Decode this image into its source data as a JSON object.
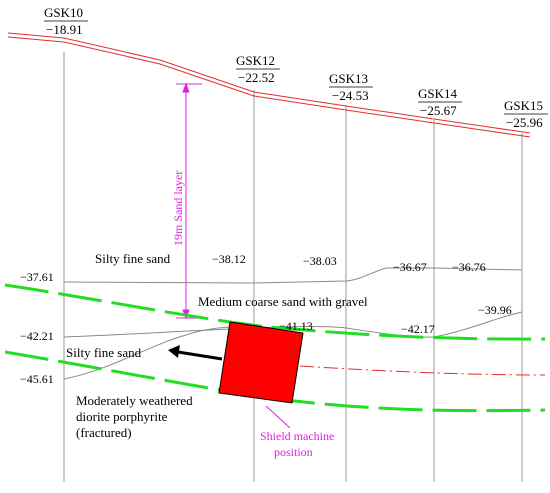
{
  "boreholes": [
    {
      "id": "GSK10",
      "elevation": "−18.91"
    },
    {
      "id": "GSK12",
      "elevation": "−22.52"
    },
    {
      "id": "GSK13",
      "elevation": "−24.53"
    },
    {
      "id": "GSK14",
      "elevation": "−25.67"
    },
    {
      "id": "GSK15",
      "elevation": "−25.96"
    }
  ],
  "depths": {
    "d1": "−37.61",
    "d2": "−38.12",
    "d3": "−38.03",
    "d4": "−36.67",
    "d5": "−36.76",
    "d6": "−42.21",
    "d7": "−41.13",
    "d8": "−42.17",
    "d9": "−39.96",
    "d10": "−45.61"
  },
  "layers": {
    "silty_fine_sand_upper": "Silty fine sand",
    "medium_coarse_sand": "Medium coarse sand with gravel",
    "silty_fine_sand_lower": "Silty fine sand",
    "diorite_line1": "Moderately weathered",
    "diorite_line2": "diorite porphyrite",
    "diorite_line3": "(fractured)"
  },
  "annotations": {
    "sand_layer": "19m Sand layer",
    "shield_line1": "Shield machine",
    "shield_line2": "position"
  },
  "colors": {
    "ground_line": "#e03030",
    "tunnel_boundary": "#22dd22",
    "shield": "#ff0000",
    "annotation": "#e020e0",
    "centerline": "#e03030"
  }
}
